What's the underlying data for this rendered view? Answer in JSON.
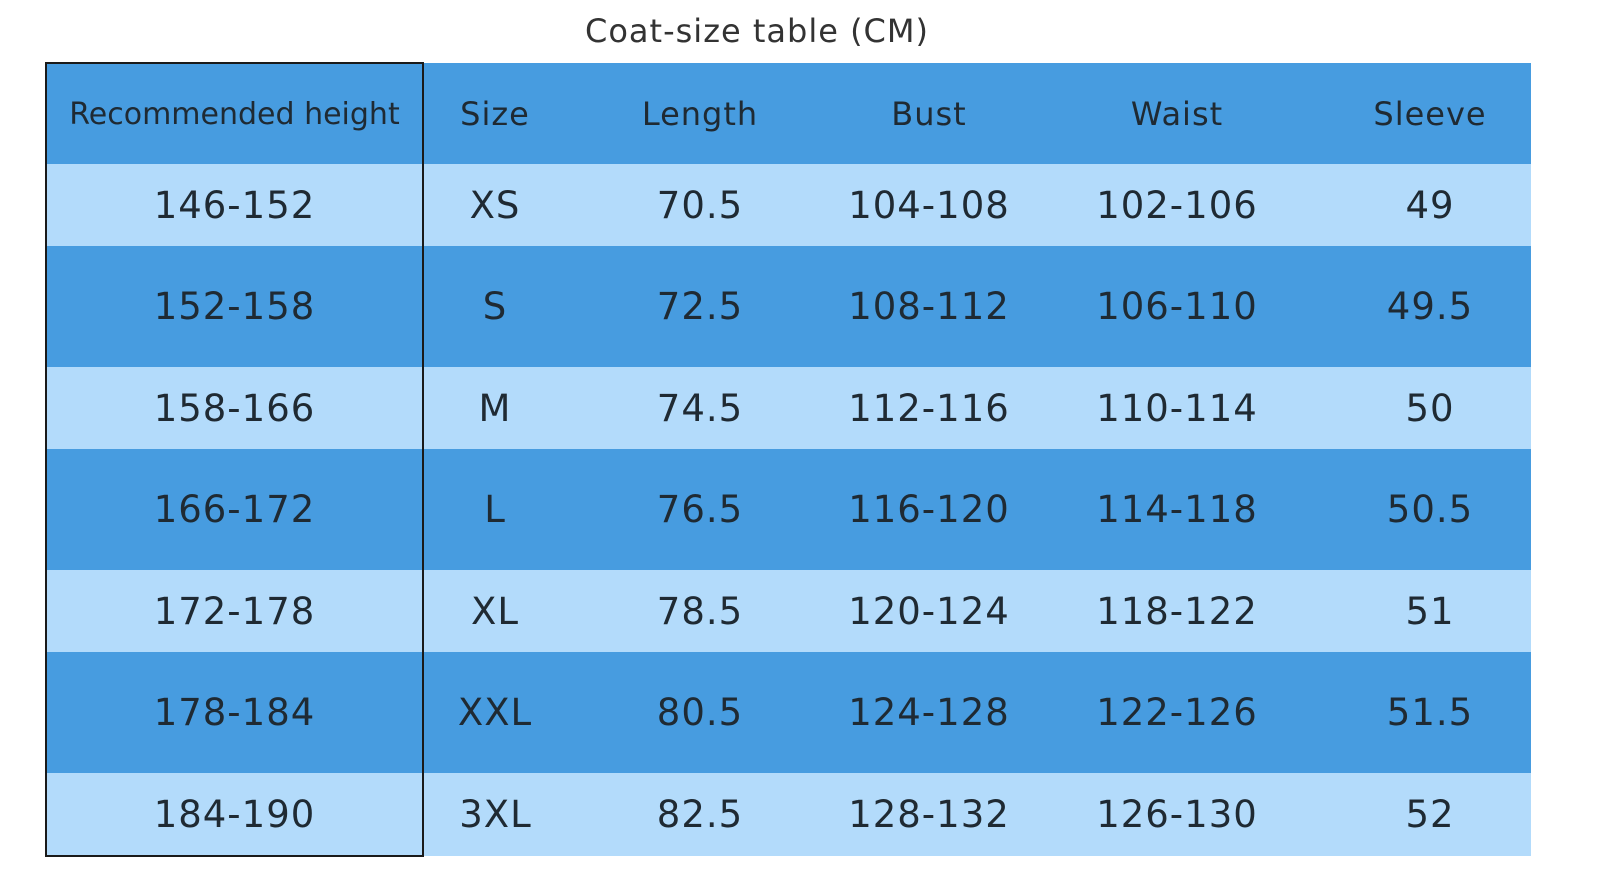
{
  "title": "Coat-size table (CM)",
  "table": {
    "header": [
      "Recommended height",
      "Size",
      "Length",
      "Bust",
      "Waist",
      "Sleeve"
    ],
    "rows": [
      [
        "146-152",
        "XS",
        "70.5",
        "104-108",
        "102-106",
        "49"
      ],
      [
        "152-158",
        "S",
        "72.5",
        "108-112",
        "106-110",
        "49.5"
      ],
      [
        "158-166",
        "M",
        "74.5",
        "112-116",
        "110-114",
        "50"
      ],
      [
        "166-172",
        "L",
        "76.5",
        "116-120",
        "114-118",
        "50.5"
      ],
      [
        "172-178",
        "XL",
        "78.5",
        "120-124",
        "118-122",
        "51"
      ],
      [
        "178-184",
        "XXL",
        "80.5",
        "124-128",
        "122-126",
        "51.5"
      ],
      [
        "184-190",
        "3XL",
        "82.5",
        "128-132",
        "126-130",
        "52"
      ]
    ]
  }
}
